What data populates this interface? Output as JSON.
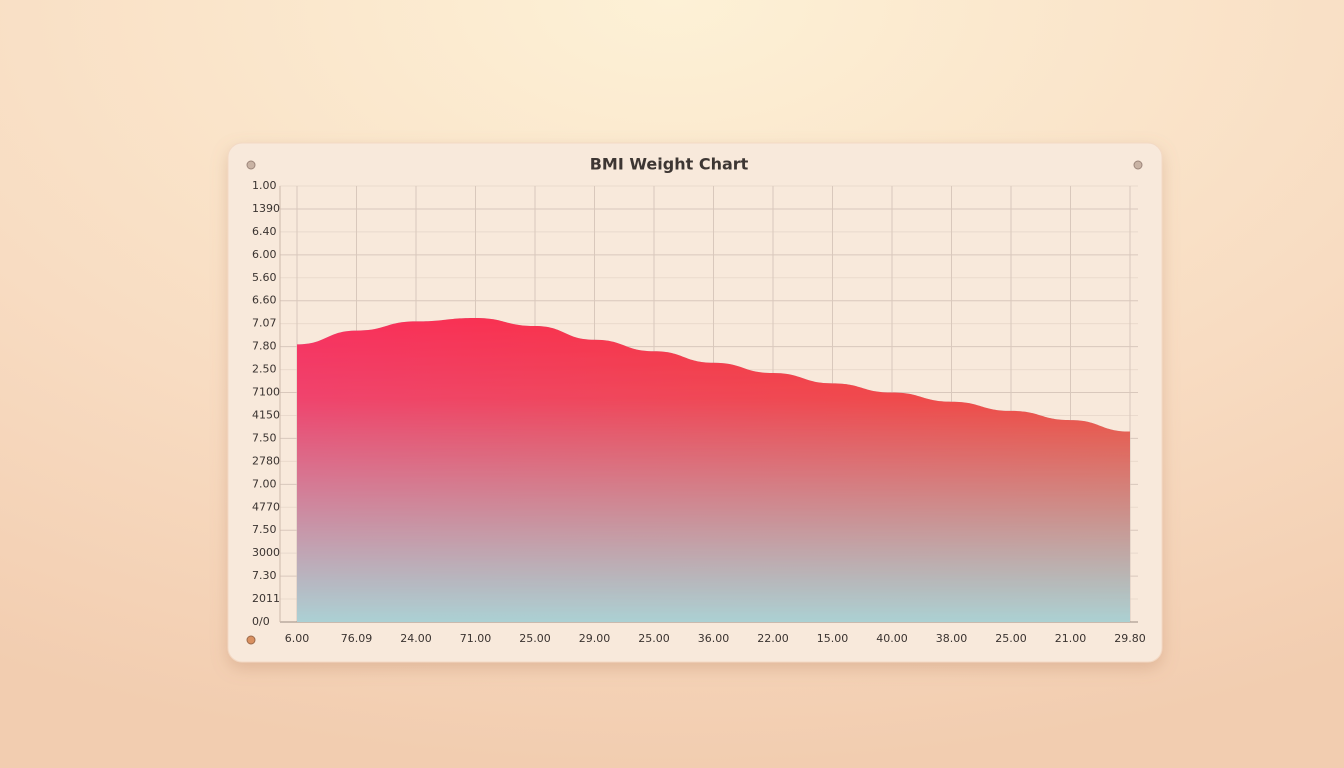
{
  "chart_data": {
    "type": "area",
    "title": "BMI Weight Chart",
    "categories": [
      "6.00",
      "76.09",
      "24.00",
      "71.00",
      "25.00",
      "29.00",
      "25.00",
      "36.00",
      "22.00",
      "15.00",
      "40.00",
      "38.00",
      "25.00",
      "21.00",
      "29.80"
    ],
    "values": [
      12.1,
      12.7,
      13.1,
      13.25,
      12.9,
      12.3,
      11.8,
      11.3,
      10.85,
      10.4,
      10.0,
      9.6,
      9.2,
      8.8,
      8.3
    ],
    "ylim": [
      0,
      19
    ],
    "yticks": [
      {
        "value": 0,
        "label": "0/0"
      },
      {
        "value": 1,
        "label": "2011"
      },
      {
        "value": 2,
        "label": "7.30"
      },
      {
        "value": 3,
        "label": "3000"
      },
      {
        "value": 4,
        "label": "7.50"
      },
      {
        "value": 5,
        "label": "4770"
      },
      {
        "value": 6,
        "label": "7.00"
      },
      {
        "value": 7,
        "label": "2780"
      },
      {
        "value": 8,
        "label": "7.50"
      },
      {
        "value": 9,
        "label": "4150"
      },
      {
        "value": 10,
        "label": "7100"
      },
      {
        "value": 11,
        "label": "2.50"
      },
      {
        "value": 12,
        "label": "7.80"
      },
      {
        "value": 13,
        "label": "7.07"
      },
      {
        "value": 14,
        "label": "6.60"
      },
      {
        "value": 15,
        "label": "5.60"
      },
      {
        "value": 16,
        "label": "6.00"
      },
      {
        "value": 17,
        "label": "6.40"
      },
      {
        "value": 18,
        "label": "1390"
      },
      {
        "value": 19,
        "label": "1.00"
      }
    ],
    "grid": true,
    "color_top": "#fb2a5a",
    "color_right": "#fb3424",
    "color_bottom": "#a9d6d8"
  }
}
